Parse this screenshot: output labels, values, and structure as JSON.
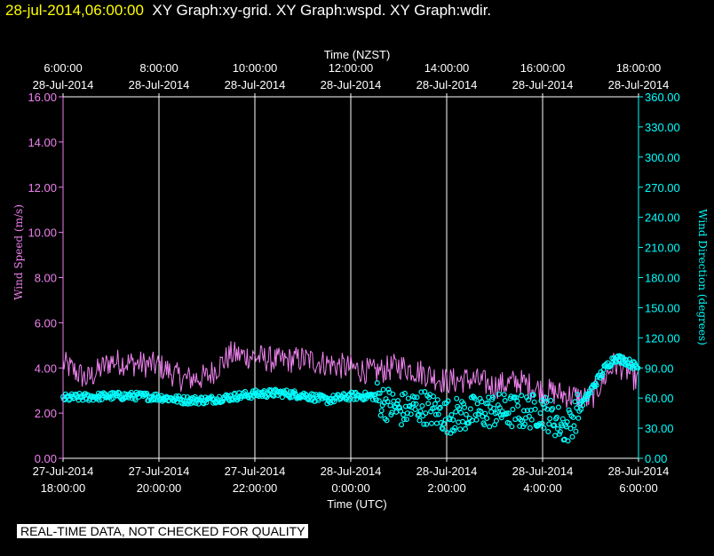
{
  "header": {
    "timestamp": "28-jul-2014,06:00:00",
    "graphs_text": "XY Graph:xy-grid.  XY Graph:wspd.  XY Graph:wdir."
  },
  "disclaimer": "REAL-TIME DATA, NOT CHECKED FOR QUALITY",
  "colors": {
    "wspd": "#ee82ee",
    "wdir": "#00ffff",
    "grid": "#ffffff",
    "axis_text": "#ffffff"
  },
  "chart_data": {
    "type": "line",
    "title": "",
    "top_axis": {
      "label": "Time (NZST)",
      "ticks": [
        {
          "t": 0,
          "l1": "6:00:00",
          "l2": "28-Jul-2014"
        },
        {
          "t": 2,
          "l1": "8:00:00",
          "l2": "28-Jul-2014"
        },
        {
          "t": 4,
          "l1": "10:00:00",
          "l2": "28-Jul-2014"
        },
        {
          "t": 6,
          "l1": "12:00:00",
          "l2": "28-Jul-2014"
        },
        {
          "t": 8,
          "l1": "14:00:00",
          "l2": "28-Jul-2014"
        },
        {
          "t": 10,
          "l1": "16:00:00",
          "l2": "28-Jul-2014"
        },
        {
          "t": 12,
          "l1": "18:00:00",
          "l2": "28-Jul-2014"
        }
      ]
    },
    "bottom_axis": {
      "label": "Time (UTC)",
      "xlim": [
        "27-Jul-2014 18:00:00",
        "28-Jul-2014 6:00:00"
      ],
      "ticks": [
        {
          "t": 0,
          "l1": "27-Jul-2014",
          "l2": "18:00:00"
        },
        {
          "t": 2,
          "l1": "27-Jul-2014",
          "l2": "20:00:00"
        },
        {
          "t": 4,
          "l1": "27-Jul-2014",
          "l2": "22:00:00"
        },
        {
          "t": 6,
          "l1": "28-Jul-2014",
          "l2": "0:00:00"
        },
        {
          "t": 8,
          "l1": "28-Jul-2014",
          "l2": "2:00:00"
        },
        {
          "t": 10,
          "l1": "28-Jul-2014",
          "l2": "4:00:00"
        },
        {
          "t": 12,
          "l1": "28-Jul-2014",
          "l2": "6:00:00"
        }
      ]
    },
    "left_axis": {
      "label": "Wind Speed (m/s)",
      "ylim": [
        0,
        16
      ],
      "ticks": [
        "0.00",
        "2.00",
        "4.00",
        "6.00",
        "8.00",
        "10.00",
        "12.00",
        "14.00",
        "16.00"
      ]
    },
    "right_axis": {
      "label": "Wind Direction (degrees)",
      "ylim": [
        0,
        360
      ],
      "ticks": [
        "0.00",
        "30.00",
        "60.00",
        "90.00",
        "120.00",
        "150.00",
        "180.00",
        "210.00",
        "240.00",
        "270.00",
        "300.00",
        "330.00",
        "360.00"
      ]
    },
    "grid": "vertical",
    "series": [
      {
        "kind": "line",
        "axis": "left",
        "x_hours_utc": [
          0,
          0.5,
          1,
          1.5,
          2,
          2.5,
          3,
          3.5,
          4,
          4.5,
          5,
          5.5,
          6,
          6.5,
          7,
          7.5,
          8,
          8.5,
          9,
          9.5,
          10,
          10.5,
          11,
          11.3,
          11.5,
          11.7,
          12
        ],
        "values": [
          4.2,
          3.5,
          4.3,
          4.2,
          4.1,
          3.5,
          3.6,
          4.6,
          4.5,
          4.3,
          4.4,
          4.2,
          4.0,
          3.8,
          4.1,
          3.8,
          3.4,
          3.5,
          3.2,
          3.4,
          3.0,
          2.8,
          2.6,
          3.6,
          4.2,
          4.0,
          3.4
        ],
        "noise": 0.6
      },
      {
        "kind": "scatter",
        "axis": "right",
        "x_hours_utc": [
          0,
          0.5,
          1,
          1.5,
          2,
          2.5,
          3,
          3.5,
          4,
          4.5,
          5,
          5.5,
          6,
          6.5,
          7,
          7.5,
          8,
          8.5,
          9,
          9.5,
          10,
          10.5,
          11,
          11.3,
          11.5,
          11.7,
          12
        ],
        "values": [
          60,
          61,
          62,
          62,
          61,
          58,
          58,
          61,
          64,
          65,
          63,
          58,
          62,
          62,
          48,
          52,
          42,
          45,
          48,
          46,
          48,
          30,
          67,
          90,
          100,
          98,
          90
        ],
        "noise": 8
      }
    ]
  }
}
